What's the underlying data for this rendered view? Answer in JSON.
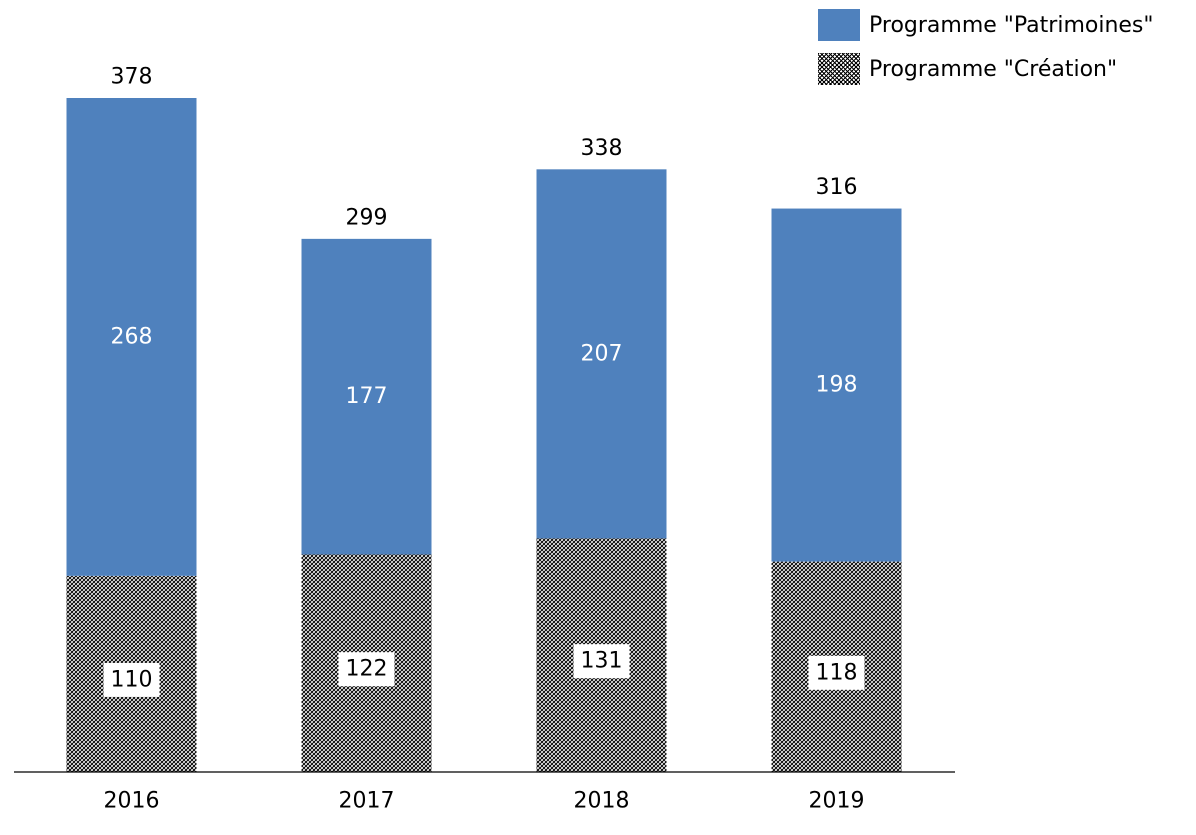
{
  "chart_data": {
    "type": "bar",
    "stacked": true,
    "categories": [
      "2016",
      "2017",
      "2018",
      "2019"
    ],
    "series": [
      {
        "name": "Programme \"Création\"",
        "values": [
          110,
          122,
          131,
          118
        ],
        "pattern": "hatch",
        "color": "#000000"
      },
      {
        "name": "Programme \"Patrimoines\"",
        "values": [
          268,
          177,
          207,
          198
        ],
        "pattern": "solid",
        "color": "#4f81bd"
      }
    ],
    "totals": [
      378,
      299,
      338,
      316
    ],
    "ylim": [
      0,
      378
    ],
    "grid": false,
    "legend_position": "top-right",
    "title": "",
    "xlabel": "",
    "ylabel": ""
  },
  "legend": {
    "items": [
      {
        "label": "Programme \"Patrimoines\"",
        "color": "#4f81bd",
        "pattern": "solid"
      },
      {
        "label": "Programme \"Création\"",
        "color": "#000000",
        "pattern": "hatch"
      }
    ]
  }
}
